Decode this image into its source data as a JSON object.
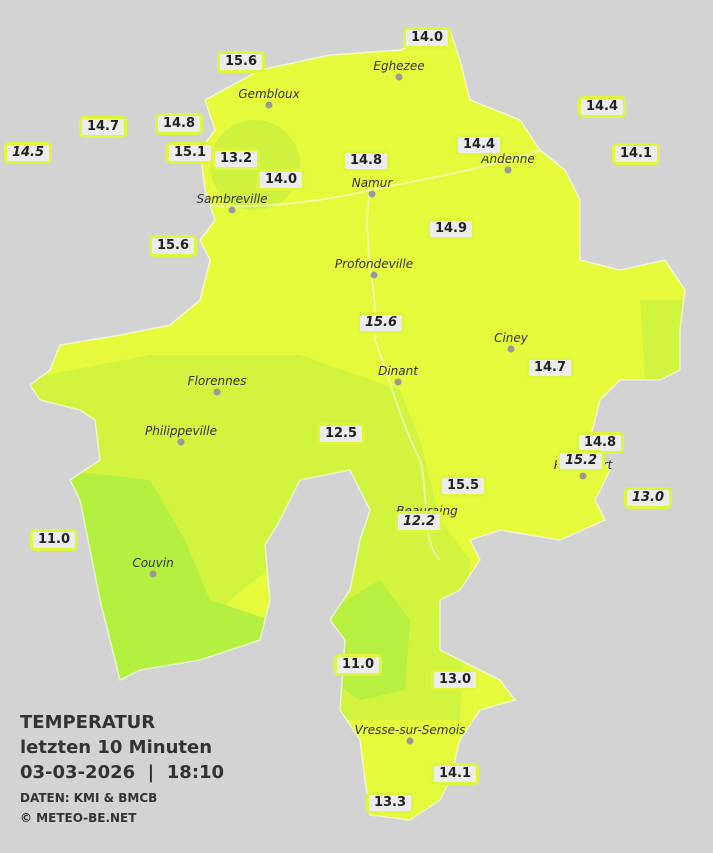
{
  "legend": {
    "title": "TEMPERATUR",
    "period": "letzten 10 Minuten",
    "datetime": "03-03-2026  |  18:10",
    "source": "DATEN: KMI & BMCB",
    "copyright": "© METEO-BE.NET"
  },
  "cities": [
    "Eghezee",
    "Gembloux",
    "Andenne",
    "Namur",
    "Sambreville",
    "Profondeville",
    "Ciney",
    "Dinant",
    "Florennes",
    "Philippeville",
    "Rochefort",
    "Beauraing",
    "Couvin",
    "Vresse-sur-Semois"
  ],
  "stations": [
    {
      "label": "15.6"
    },
    {
      "label": "14.0"
    },
    {
      "label": "14.7"
    },
    {
      "label": "14.8"
    },
    {
      "label": "14.4"
    },
    {
      "label": "14.5",
      "italic": true
    },
    {
      "label": "15.1"
    },
    {
      "label": "13.2"
    },
    {
      "label": "14.0"
    },
    {
      "label": "14.8"
    },
    {
      "label": "14.4"
    },
    {
      "label": "14.1"
    },
    {
      "label": "15.6"
    },
    {
      "label": "14.9"
    },
    {
      "label": "15.6",
      "italic": true
    },
    {
      "label": "14.7"
    },
    {
      "label": "12.5"
    },
    {
      "label": "14.8"
    },
    {
      "label": "15.2",
      "italic": true
    },
    {
      "label": "15.5"
    },
    {
      "label": "13.0",
      "italic": true
    },
    {
      "label": "12.2",
      "italic": true
    },
    {
      "label": "11.0"
    },
    {
      "label": "11.0"
    },
    {
      "label": "13.0"
    },
    {
      "label": "14.1"
    },
    {
      "label": "13.3"
    }
  ]
}
